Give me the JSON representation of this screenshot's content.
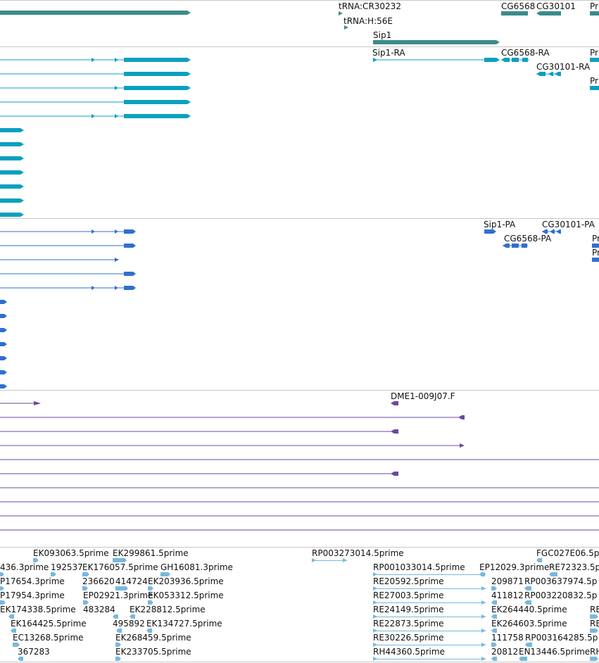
{
  "colors": {
    "gene": "#3a8c8c",
    "transcript": "#0aa0c0",
    "protein": "#2f6fd0",
    "est_align": "#6a48a0",
    "est_read": "#78b8de",
    "separator": "#c8c8c8",
    "text": "#111111"
  },
  "tracks": {
    "genes": {
      "labels": {
        "trna_cr30232": "tRNA:CR30232",
        "trna_h56e": "tRNA:H:56E",
        "cg6568": "CG6568",
        "cg30101": "CG30101",
        "pr_clip": "Pr",
        "sip1": "Sip1"
      }
    },
    "transcripts": {
      "labels": {
        "sip1_ra": "Sip1-RA",
        "cg6568_ra": "CG6568-RA",
        "cg30101_ra": "CG30101-RA",
        "pr_clip_1": "Pr",
        "pr_clip_2": "Pr"
      }
    },
    "proteins": {
      "labels": {
        "sip1_pa": "Sip1-PA",
        "cg30101_pa": "CG30101-PA",
        "cg6568_pa": "CG6568-PA",
        "pr_clip_1": "Pr",
        "pr_clip_2": "Pr"
      }
    },
    "est_alignments": {
      "labels": {
        "dme1": "DME1-009J07.F"
      }
    },
    "est_reads": {
      "labels": [
        "EK093063.5prime",
        "EK299861.5prime",
        "RP003273014.5prime",
        "FGC027E06.5p",
        "436.3prime",
        "192537",
        "EK176057.5prime",
        "GH16081.3prime",
        "RP001033014.5prime",
        "EP12029.3prime",
        "RE72323.5p",
        "P17654.3prime",
        "236620",
        "414724",
        "EK203936.5prime",
        "RE20592.5prime",
        "209871",
        "RP003637974.5p",
        "P17954.3prime",
        "EP02921.3prime",
        "EK053312.5prime",
        "RE27003.5prime",
        "411812",
        "RP003220832.5p",
        "EK174338.5prime",
        "483284",
        "EK228812.5prime",
        "RE24149.5prime",
        "EK264440.5prime",
        "RE",
        "EK164425.5prime",
        "495892",
        "EK134727.5prime",
        "RE22873.5prime",
        "EK264603.5prime",
        "RE",
        "EC13268.5prime",
        "EK268459.5prime",
        "RE30226.5prime",
        "111758",
        "RP003164285.5p",
        "367283",
        "EK233705.5prime",
        "RH44360.5prime",
        "20812",
        "EN13446.5prime",
        "RH"
      ]
    }
  }
}
